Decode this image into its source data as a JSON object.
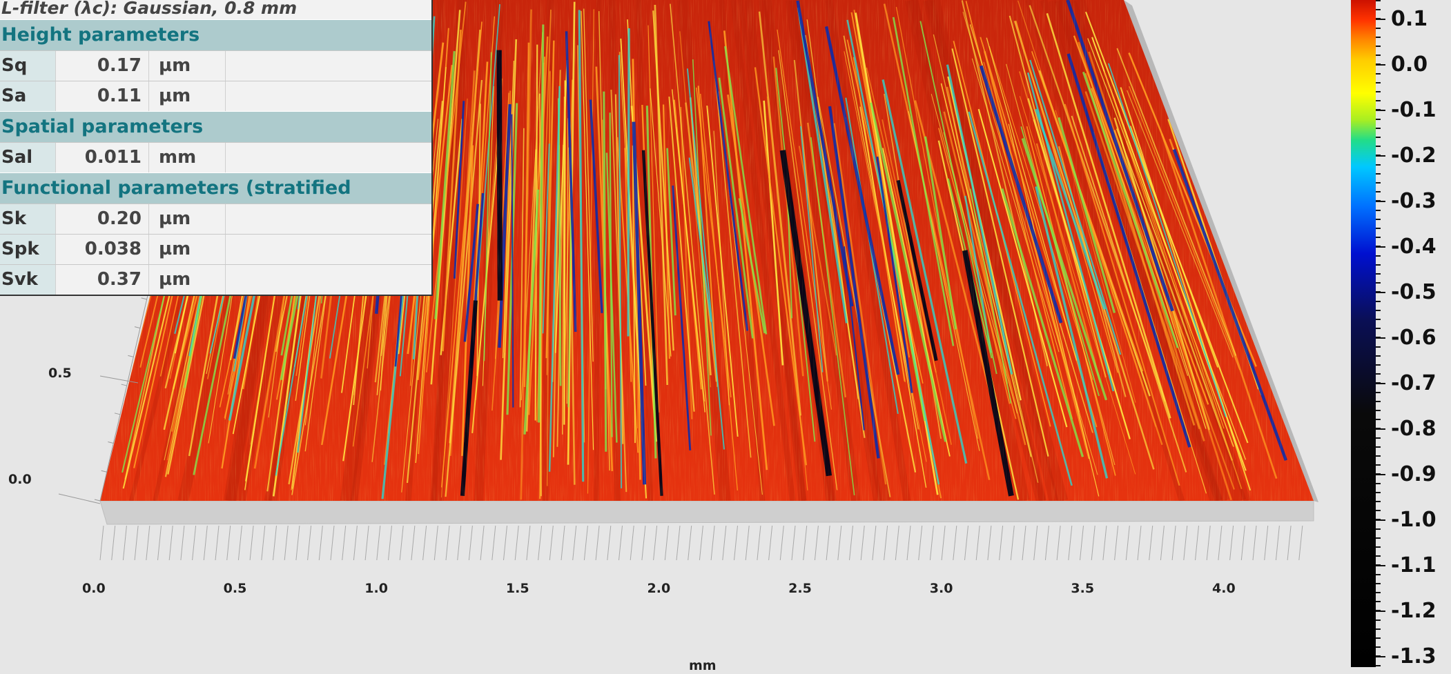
{
  "info_panel": {
    "filter_text": "L-filter (λc): Gaussian, 0.8 mm",
    "sections": [
      {
        "title": "Height parameters",
        "rows": [
          {
            "name": "Sq",
            "value": "0.17",
            "unit": "µm"
          },
          {
            "name": "Sa",
            "value": "0.11",
            "unit": "µm"
          }
        ]
      },
      {
        "title": "Spatial parameters",
        "rows": [
          {
            "name": "Sal",
            "value": "0.011",
            "unit": "mm"
          }
        ]
      },
      {
        "title": "Functional parameters (stratified surfaces)",
        "rows": [
          {
            "name": "Sk",
            "value": "0.20",
            "unit": "µm"
          },
          {
            "name": "Spk",
            "value": "0.038",
            "unit": "µm"
          },
          {
            "name": "Svk",
            "value": "0.37",
            "unit": "µm"
          }
        ]
      }
    ]
  },
  "chart_data": {
    "type": "heatmap",
    "x_axis": {
      "label": "mm",
      "ticks": [
        "0.0",
        "0.5",
        "1.0",
        "1.5",
        "2.0",
        "2.5",
        "3.0",
        "3.5",
        "4.0"
      ],
      "range": [
        0,
        4.3
      ]
    },
    "y_axis": {
      "ticks": [
        "0.0",
        "0.5"
      ]
    },
    "colorbar": {
      "ticks": [
        "0.1",
        "0.0",
        "-0.1",
        "-0.2",
        "-0.3",
        "-0.4",
        "-0.5",
        "-0.6",
        "-0.7",
        "-0.8",
        "-0.9",
        "-1.0",
        "-1.1",
        "-1.2",
        "-1.3"
      ],
      "range": [
        -1.3,
        0.15
      ],
      "gradient_colors": [
        "#000000",
        "#0a0a0a",
        "#0a0f55",
        "#0010d0",
        "#0070ff",
        "#00c8ff",
        "#22dd88",
        "#c8f000",
        "#ffff00",
        "#ffb000",
        "#ff4000",
        "#dd2200",
        "#cc1100"
      ]
    },
    "surface_colors": {
      "base": "#d92f0d",
      "peak": "#ffe640",
      "valley_mid": "#2bd6d0",
      "valley_deep": "#0b2aa8",
      "pit": "#020418"
    }
  }
}
